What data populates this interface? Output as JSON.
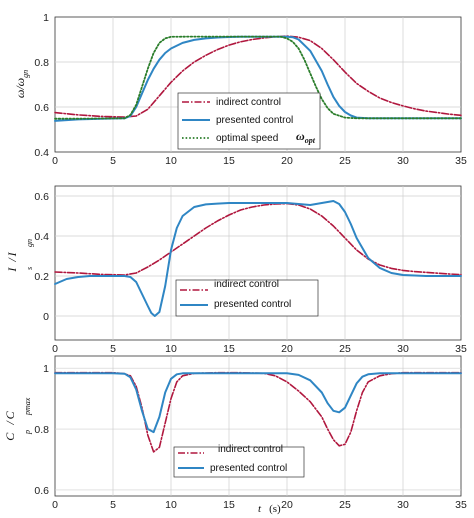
{
  "figure": {
    "xlabel_var": "t",
    "xlabel_unit": "(s)"
  },
  "colors": {
    "indirect": "#b0173e",
    "presented": "#2f86c4",
    "optimal": "#2a7d2a",
    "grid": "#cfcfcf",
    "axis": "#333333"
  },
  "chart_data": [
    {
      "type": "line",
      "ylabel": {
        "main1": "ω",
        "sep": "/",
        "main2": "ω",
        "sub": "gn"
      },
      "xlim": [
        0,
        35
      ],
      "ylim": [
        0.4,
        1.0
      ],
      "xticks": [
        "0",
        "5",
        "10",
        "15",
        "20",
        "25",
        "30",
        "35"
      ],
      "yticks": [
        "0.4",
        "0.6",
        "0.8",
        "1"
      ],
      "yticks_values": [
        0.4,
        0.6,
        0.8,
        1.0
      ],
      "annotation": {
        "main": "ω",
        "sub": "opt"
      },
      "series": [
        {
          "name": "indirect control",
          "style": "dashdot",
          "color": "#b0173e",
          "x": [
            0,
            2,
            4,
            6,
            7,
            8,
            9,
            10,
            11,
            12,
            13,
            14,
            15,
            16,
            17,
            18,
            19,
            20,
            21,
            22,
            23,
            24,
            25,
            26,
            27,
            28,
            29,
            30,
            31,
            32,
            33,
            34,
            35
          ],
          "y": [
            0.575,
            0.565,
            0.558,
            0.555,
            0.56,
            0.59,
            0.65,
            0.71,
            0.76,
            0.8,
            0.83,
            0.855,
            0.875,
            0.89,
            0.9,
            0.907,
            0.912,
            0.915,
            0.91,
            0.895,
            0.86,
            0.81,
            0.755,
            0.705,
            0.67,
            0.64,
            0.62,
            0.605,
            0.592,
            0.582,
            0.575,
            0.568,
            0.563
          ]
        },
        {
          "name": "presented control",
          "style": "solid",
          "color": "#2f86c4",
          "x": [
            0,
            2,
            4,
            6,
            6.5,
            7,
            7.5,
            8,
            8.5,
            9,
            9.5,
            10,
            11,
            12,
            13,
            14,
            15,
            16,
            17,
            18,
            19,
            20,
            20.5,
            21,
            22,
            23,
            23.5,
            24,
            24.5,
            25,
            25.5,
            26,
            27,
            28,
            30,
            32,
            35
          ],
          "y": [
            0.538,
            0.545,
            0.548,
            0.55,
            0.56,
            0.6,
            0.66,
            0.72,
            0.77,
            0.81,
            0.84,
            0.86,
            0.885,
            0.898,
            0.905,
            0.909,
            0.911,
            0.912,
            0.912,
            0.912,
            0.912,
            0.912,
            0.91,
            0.9,
            0.85,
            0.76,
            0.7,
            0.645,
            0.605,
            0.578,
            0.562,
            0.553,
            0.55,
            0.55,
            0.55,
            0.55,
            0.55
          ]
        },
        {
          "name": "optimal speed",
          "style": "dotted",
          "color": "#2a7d2a",
          "x": [
            0,
            2,
            4,
            6,
            6.5,
            7,
            7.5,
            8,
            8.5,
            9,
            9.5,
            10,
            12,
            14,
            16,
            18,
            19,
            19.5,
            20,
            20.5,
            21,
            21.5,
            22,
            22.5,
            23,
            23.5,
            24,
            25,
            26,
            28,
            30,
            35
          ],
          "y": [
            0.548,
            0.548,
            0.549,
            0.55,
            0.565,
            0.61,
            0.69,
            0.77,
            0.84,
            0.885,
            0.905,
            0.912,
            0.913,
            0.913,
            0.913,
            0.913,
            0.913,
            0.912,
            0.905,
            0.89,
            0.86,
            0.81,
            0.75,
            0.69,
            0.635,
            0.595,
            0.57,
            0.553,
            0.55,
            0.55,
            0.55,
            0.55
          ]
        }
      ]
    },
    {
      "type": "line",
      "ylabel": {
        "main1": "I",
        "sep": "/",
        "main2": "I",
        "sub1": "s",
        "sub2": "gn"
      },
      "xlim": [
        0,
        35
      ],
      "ylim": [
        -0.12,
        0.65
      ],
      "xticks": [
        "0",
        "5",
        "10",
        "15",
        "20",
        "25",
        "30",
        "35"
      ],
      "yticks": [
        "0",
        "0.2",
        "0.4",
        "0.6"
      ],
      "yticks_values": [
        0,
        0.2,
        0.4,
        0.6
      ],
      "series": [
        {
          "name": "indirect control",
          "style": "dashdot",
          "color": "#b0173e",
          "x": [
            0,
            2,
            4,
            6,
            7,
            8,
            9,
            10,
            11,
            12,
            13,
            14,
            15,
            16,
            17,
            18,
            19,
            20,
            21,
            22,
            23,
            24,
            25,
            26,
            27,
            28,
            29,
            30,
            31,
            32,
            33,
            34,
            35
          ],
          "y": [
            0.22,
            0.215,
            0.208,
            0.205,
            0.215,
            0.245,
            0.28,
            0.32,
            0.36,
            0.4,
            0.44,
            0.475,
            0.505,
            0.53,
            0.545,
            0.555,
            0.56,
            0.562,
            0.555,
            0.535,
            0.5,
            0.45,
            0.39,
            0.33,
            0.285,
            0.255,
            0.238,
            0.228,
            0.222,
            0.218,
            0.214,
            0.21,
            0.207
          ]
        },
        {
          "name": "presented control",
          "style": "solid",
          "color": "#2f86c4",
          "x": [
            0,
            1,
            2,
            3,
            4,
            5,
            6,
            6.5,
            7,
            7.5,
            8,
            8.3,
            8.6,
            9,
            9.5,
            10,
            10.5,
            11,
            12,
            13,
            14,
            15,
            16,
            17,
            18,
            19,
            20,
            21,
            22,
            23,
            24,
            24.5,
            25,
            25.5,
            26,
            27,
            28,
            29,
            30,
            32,
            35
          ],
          "y": [
            0.16,
            0.185,
            0.195,
            0.2,
            0.2,
            0.2,
            0.2,
            0.195,
            0.17,
            0.11,
            0.05,
            0.015,
            0.0,
            0.02,
            0.15,
            0.33,
            0.44,
            0.5,
            0.545,
            0.558,
            0.562,
            0.565,
            0.565,
            0.565,
            0.565,
            0.565,
            0.565,
            0.56,
            0.555,
            0.565,
            0.575,
            0.56,
            0.52,
            0.46,
            0.39,
            0.29,
            0.24,
            0.215,
            0.205,
            0.2,
            0.2
          ]
        }
      ]
    },
    {
      "type": "line",
      "ylabel": {
        "main1": "C",
        "sep": "/",
        "main2": "C",
        "sub1": "p",
        "sub2": "pmax"
      },
      "xlim": [
        0,
        35
      ],
      "ylim": [
        0.58,
        1.04
      ],
      "xticks": [
        "0",
        "5",
        "10",
        "15",
        "20",
        "25",
        "30",
        "35"
      ],
      "yticks": [
        "0.6",
        "0.8",
        "1"
      ],
      "yticks_values": [
        0.6,
        0.8,
        1.0
      ],
      "series": [
        {
          "name": "indirect control",
          "style": "dashdot",
          "color": "#b0173e",
          "x": [
            0,
            5,
            6,
            6.5,
            7,
            7.5,
            8,
            8.5,
            9,
            9.5,
            10,
            10.5,
            11,
            12,
            14,
            16,
            18,
            19,
            20,
            21,
            22,
            23,
            23.5,
            24,
            24.5,
            25,
            25.5,
            26,
            26.5,
            27,
            28,
            29,
            30,
            35
          ],
          "y": [
            0.985,
            0.985,
            0.982,
            0.975,
            0.94,
            0.87,
            0.78,
            0.725,
            0.74,
            0.82,
            0.9,
            0.955,
            0.975,
            0.983,
            0.985,
            0.985,
            0.983,
            0.975,
            0.955,
            0.925,
            0.89,
            0.84,
            0.8,
            0.765,
            0.745,
            0.75,
            0.79,
            0.86,
            0.92,
            0.955,
            0.975,
            0.982,
            0.985,
            0.985
          ]
        },
        {
          "name": "presented control",
          "style": "solid",
          "color": "#2f86c4",
          "x": [
            0,
            5,
            6,
            6.5,
            7,
            7.5,
            8,
            8.5,
            9,
            9.5,
            10,
            10.5,
            11,
            12,
            16,
            20,
            21,
            22,
            23,
            23.5,
            24,
            24.5,
            25,
            25.5,
            26,
            26.5,
            27,
            28,
            30,
            35
          ],
          "y": [
            0.983,
            0.983,
            0.982,
            0.97,
            0.93,
            0.86,
            0.8,
            0.79,
            0.84,
            0.92,
            0.965,
            0.98,
            0.983,
            0.983,
            0.983,
            0.983,
            0.978,
            0.96,
            0.92,
            0.885,
            0.86,
            0.855,
            0.87,
            0.91,
            0.95,
            0.972,
            0.98,
            0.983,
            0.983,
            0.983
          ]
        }
      ]
    }
  ]
}
